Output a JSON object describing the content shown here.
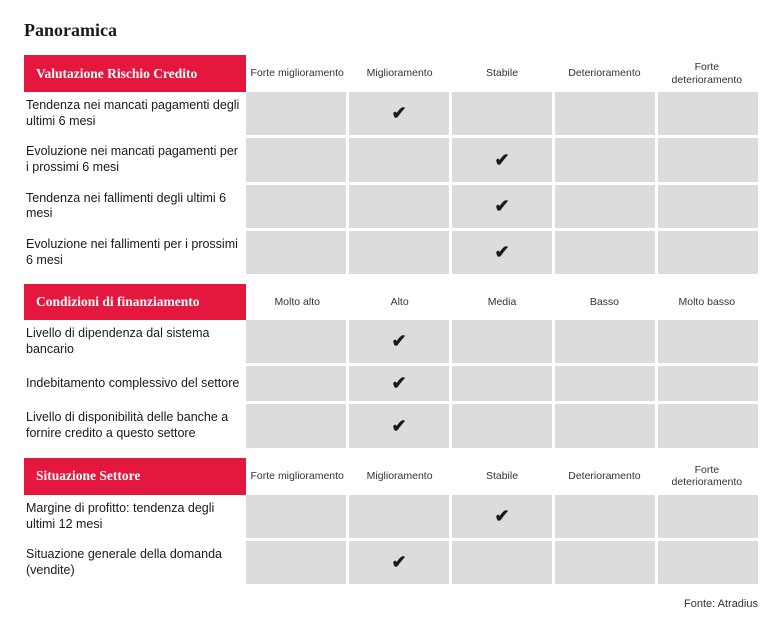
{
  "title": "Panoramica",
  "source": "Fonte: Atradius",
  "colors": {
    "section_header_bg": "#e4173e",
    "section_header_text": "#ffffff",
    "cell_bg": "#dcdcde",
    "text": "#1a1a1a",
    "background": "#ffffff"
  },
  "checkmark": "✔",
  "sections": [
    {
      "label": "Valutazione Rischio Credito",
      "columns": [
        "Forte miglioramento",
        "Miglioramento",
        "Stabile",
        "Deterioramento",
        "Forte deterioramento"
      ],
      "rows": [
        {
          "label": "Tendenza nei mancati pagamenti degli ultimi 6 mesi",
          "checked": 1
        },
        {
          "label": "Evoluzione nei mancati pagamenti per i prossimi 6 mesi",
          "checked": 2
        },
        {
          "label": "Tendenza nei fallimenti degli ultimi 6 mesi",
          "checked": 2
        },
        {
          "label": "Evoluzione nei fallimenti per i prossimi 6 mesi",
          "checked": 2
        }
      ]
    },
    {
      "label": "Condizioni di finanziamento",
      "columns": [
        "Molto alto",
        "Alto",
        "Media",
        "Basso",
        "Molto basso"
      ],
      "rows": [
        {
          "label": "Livello di dipendenza dal sistema bancario",
          "checked": 1
        },
        {
          "label": "Indebitamento complessivo del settore",
          "checked": 1
        },
        {
          "label": "Livello di disponibilità delle banche a fornire credito a questo settore",
          "checked": 1
        }
      ]
    },
    {
      "label": "Situazione Settore",
      "columns": [
        "Forte miglioramento",
        "Miglioramento",
        "Stabile",
        "Deterioramento",
        "Forte deterioramento"
      ],
      "rows": [
        {
          "label": "Margine di profitto: tendenza degli ultimi 12 mesi",
          "checked": 2
        },
        {
          "label": "Situazione generale della domanda (vendite)",
          "checked": 1
        }
      ]
    }
  ]
}
